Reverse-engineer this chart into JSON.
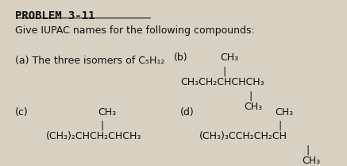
{
  "title": "PROBLEM 3-11",
  "subtitle": "Give IUPAC names for the following compounds:",
  "a_label": "(a) The three isomers of C₅H₁₂",
  "b_label": "(b)",
  "b_line1": "CH₃",
  "b_line2": "CH₃CH₂CHCHCH₃",
  "b_line3": "CH₃",
  "c_label": "(c)",
  "c_line1": "CH₃",
  "c_line2": "(CH₃)₂CHCH₂CHCH₃",
  "d_label": "(d)",
  "d_line1": "CH₃",
  "d_line2": "(CH₃)₃CCH₂CH₂CH",
  "d_line3": "CH₃",
  "bg_color": "#d8d0c0",
  "text_color": "#111111",
  "font_size_title": 10,
  "font_size_body": 9
}
